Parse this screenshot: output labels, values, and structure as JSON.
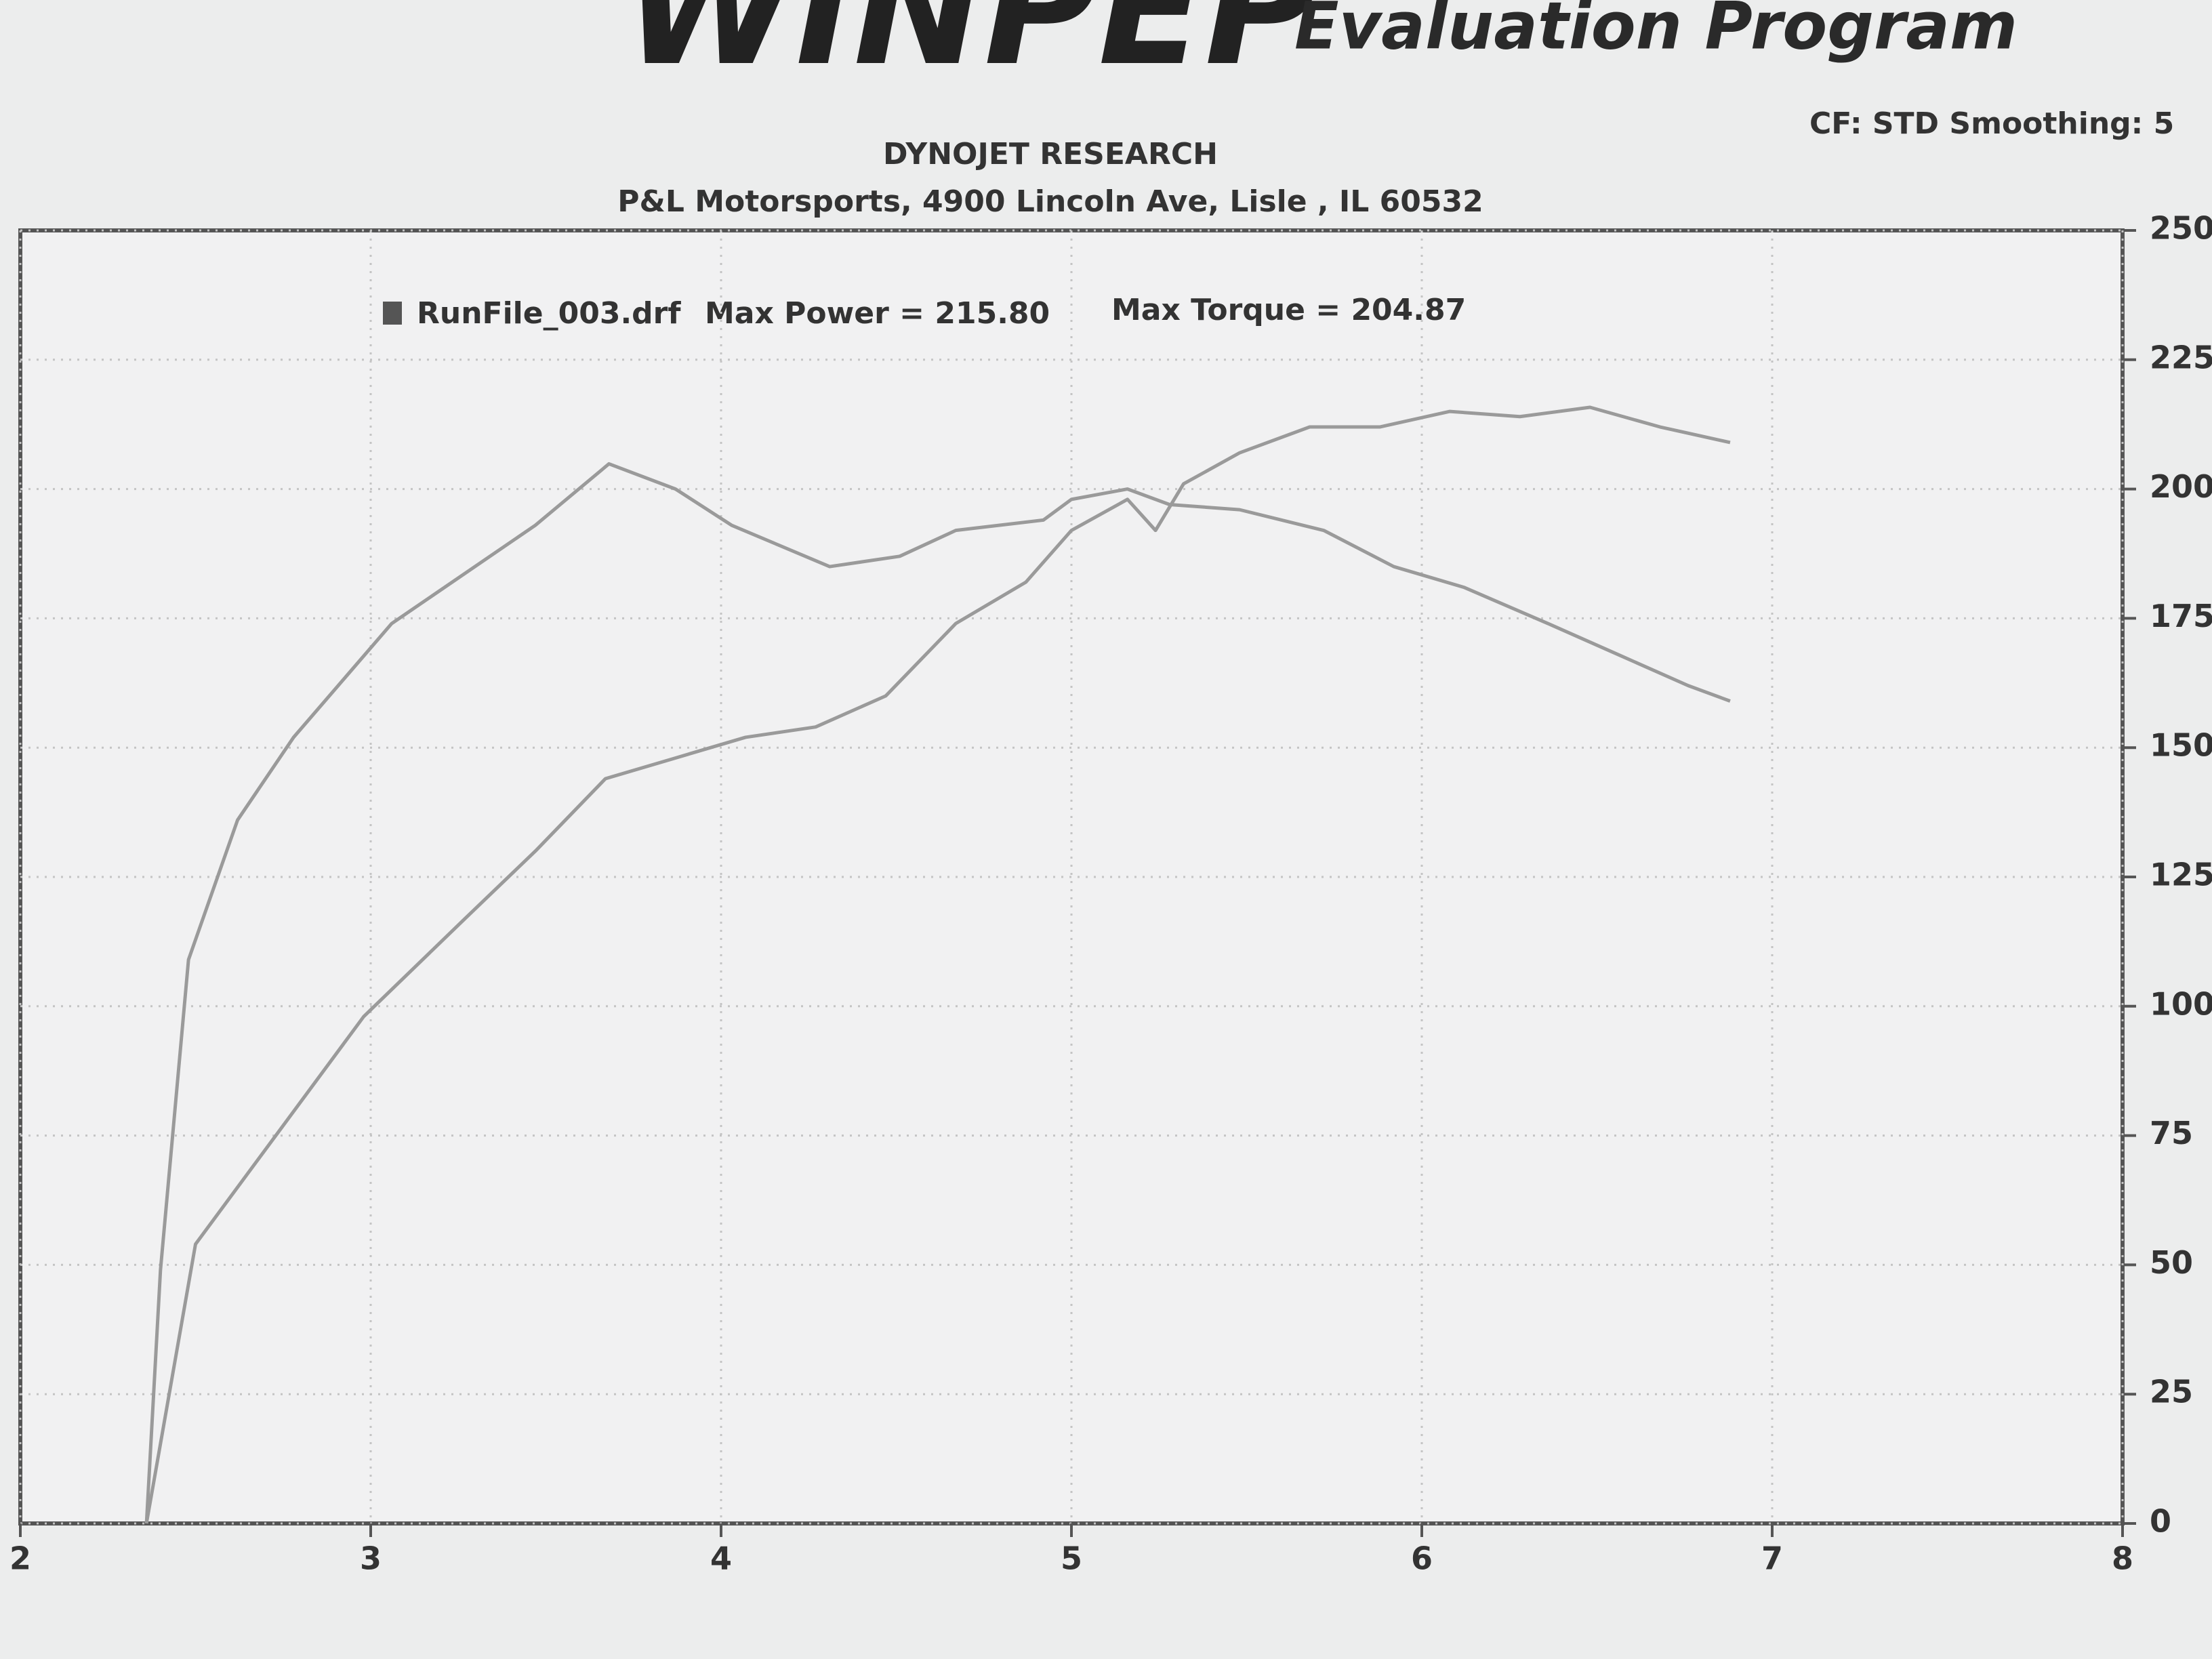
{
  "chart_data": {
    "type": "line",
    "logo": "WINPEP",
    "title": "Evaluation Program",
    "subtitle": "DYNOJET RESEARCH",
    "address": "P&L Motorsports, 4900 Lincoln Ave, Lisle , IL 60532",
    "settings": "CF: STD  Smoothing: 5",
    "annotations": [
      "Max Power = 215.80",
      "Max Torque = 204.87"
    ],
    "xlim": [
      2,
      8
    ],
    "xticks": [
      2,
      3,
      4,
      5,
      6,
      7,
      8
    ],
    "ylim": [
      0,
      250
    ],
    "yticks": [
      0,
      25,
      50,
      75,
      100,
      125,
      150,
      175,
      200,
      225,
      250
    ],
    "grid": true,
    "series": [
      {
        "name": "RunFile_003.drf",
        "color": "#9a9a9a",
        "x": [
          2.36,
          2.5,
          2.74,
          2.98,
          3.27,
          3.47,
          3.67,
          3.87,
          4.07,
          4.27,
          4.47,
          4.67,
          4.87,
          5.0,
          5.16,
          5.24,
          5.32,
          5.48,
          5.68,
          5.88,
          6.08,
          6.28,
          6.48,
          6.68,
          6.88
        ],
        "values": [
          0,
          54,
          76,
          98,
          117,
          130,
          144,
          148,
          152,
          154,
          160,
          174,
          182,
          192,
          198,
          192,
          201,
          207,
          212,
          212,
          215,
          214,
          215.8,
          212,
          209
        ]
      },
      {
        "name": "RunFile_003.drf",
        "color": "#9a9a9a",
        "x": [
          2.36,
          2.4,
          2.48,
          2.62,
          2.78,
          3.06,
          3.47,
          3.68,
          3.87,
          4.03,
          4.31,
          4.51,
          4.67,
          4.92,
          5.0,
          5.16,
          5.28,
          5.48,
          5.72,
          5.92,
          6.12,
          6.36,
          6.56,
          6.76,
          6.88
        ],
        "values": [
          0,
          49,
          109,
          136,
          152,
          174,
          193,
          204.87,
          200,
          193,
          185,
          187,
          192,
          194,
          198,
          200,
          197,
          196,
          192,
          185,
          181,
          174,
          168,
          162,
          159
        ]
      }
    ]
  }
}
